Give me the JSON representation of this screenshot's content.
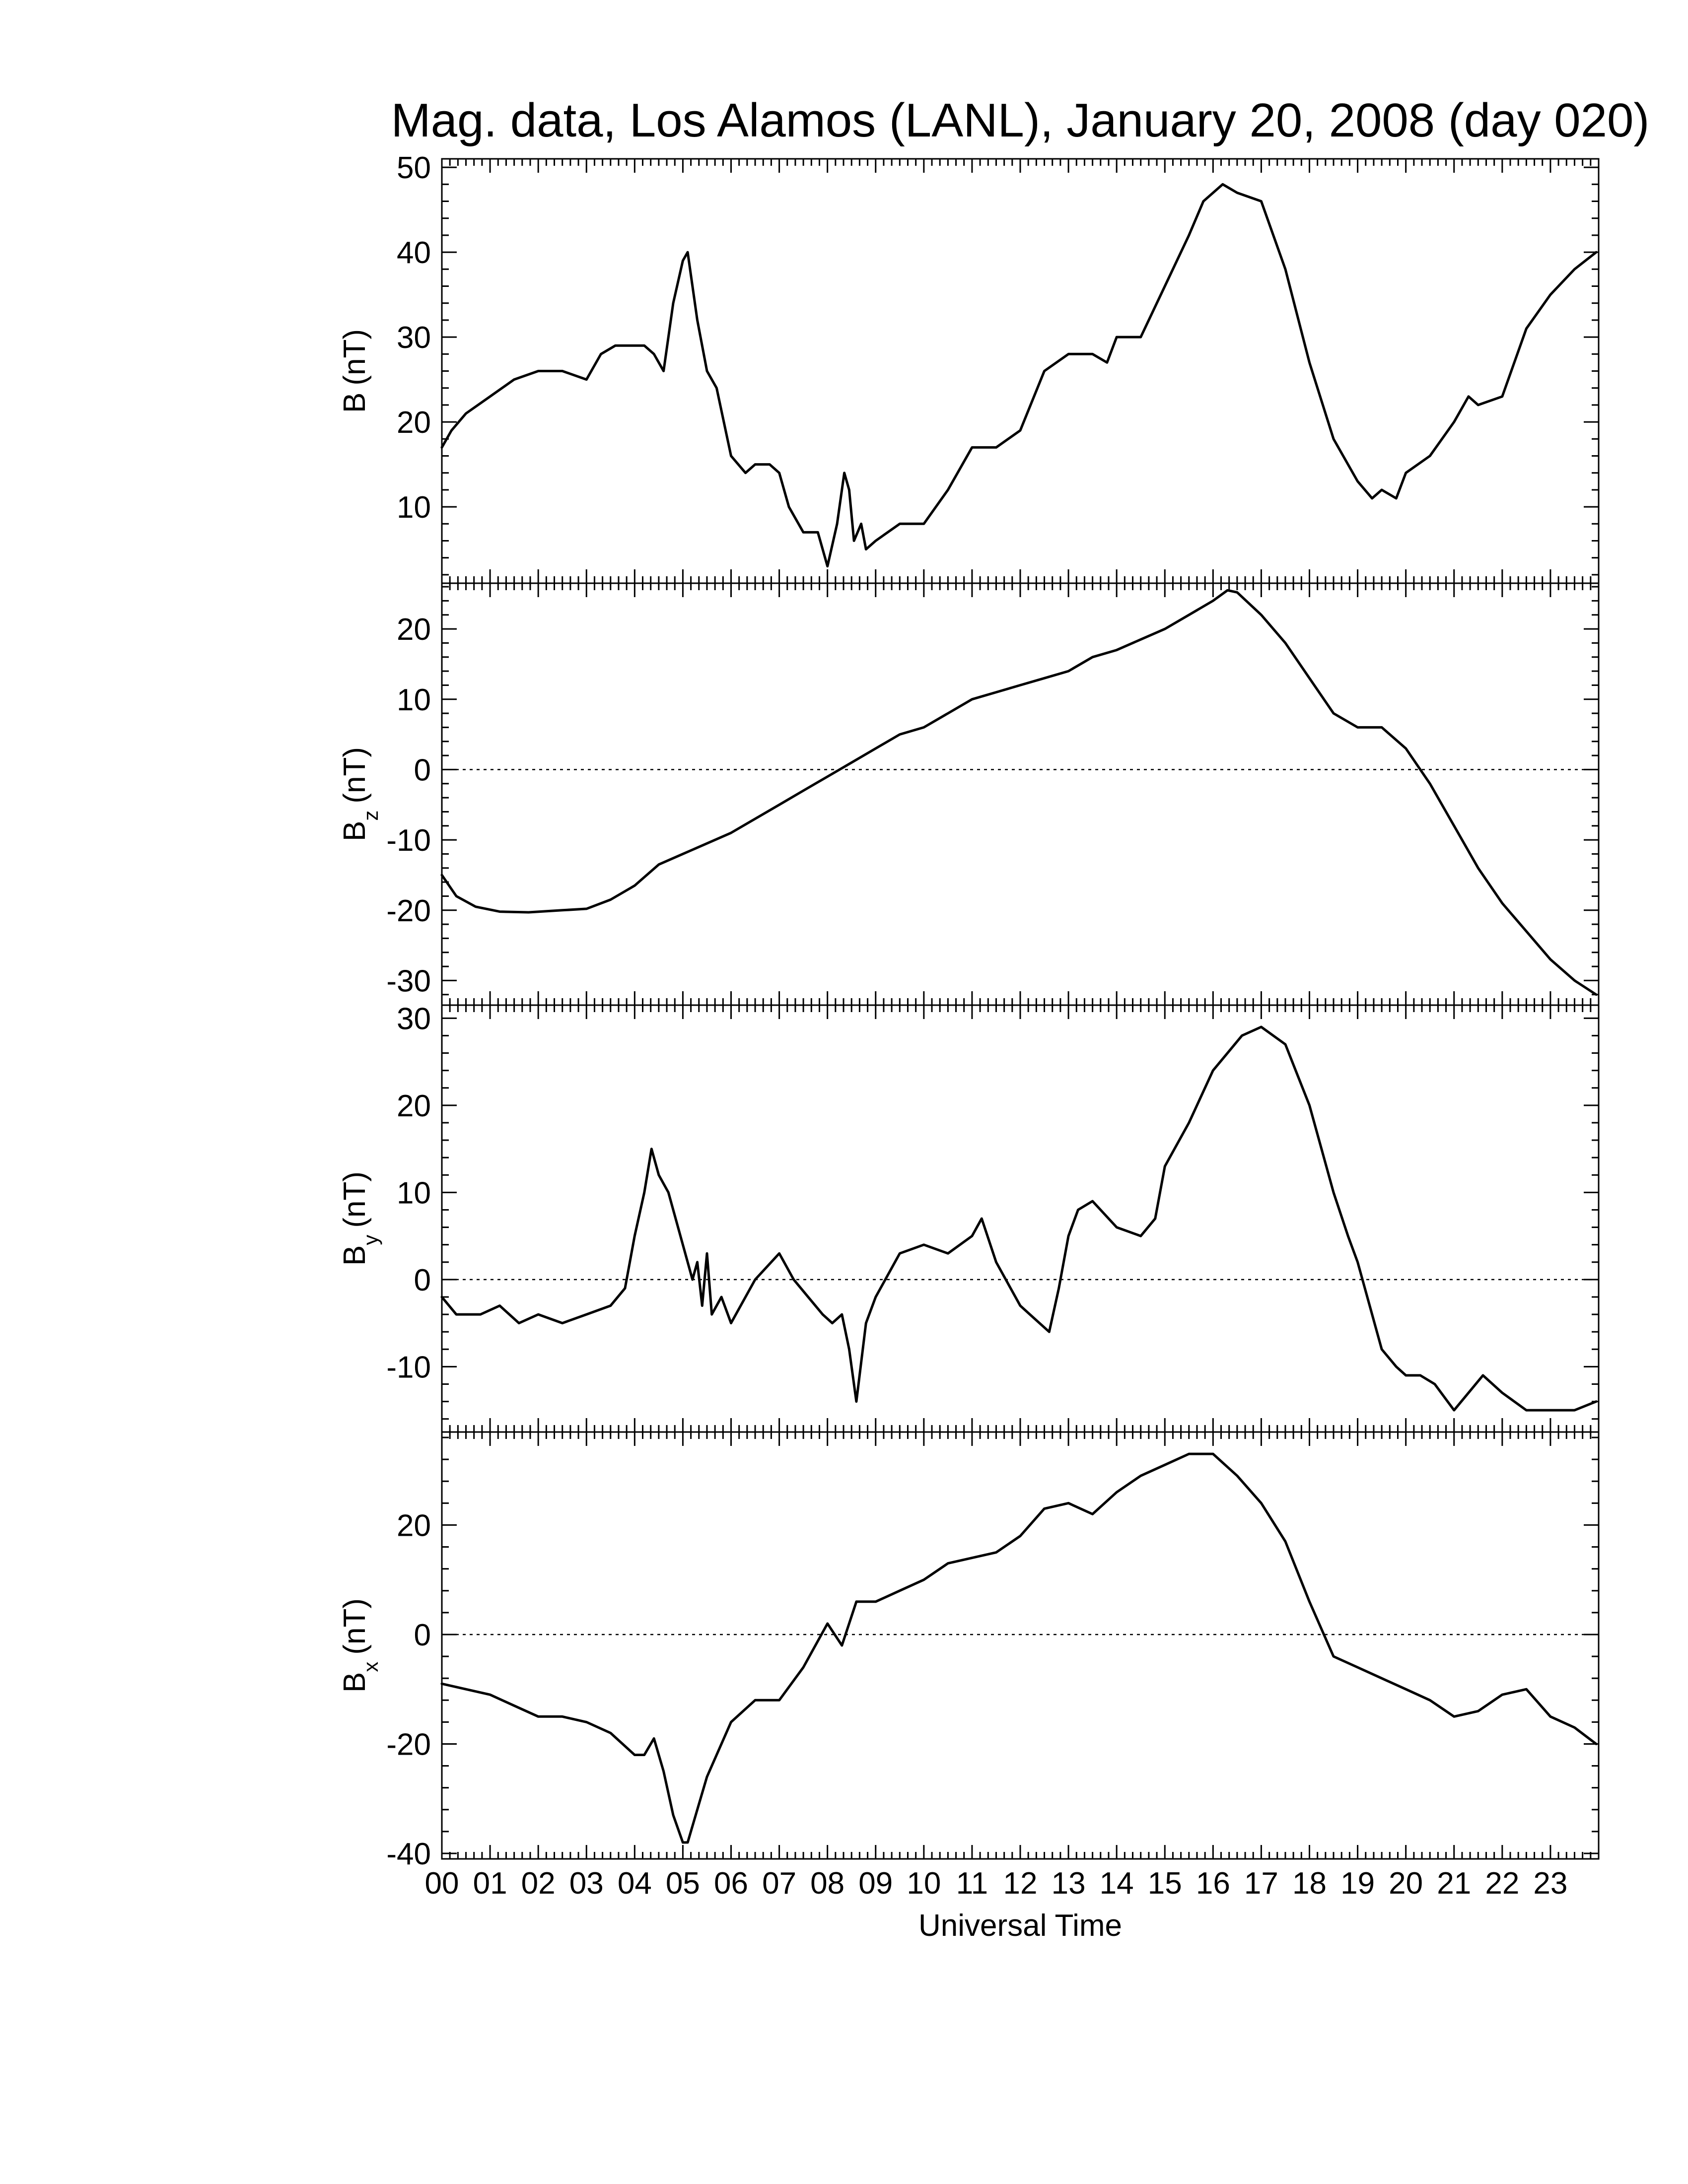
{
  "chart_data": {
    "type": "line",
    "title": "Mag. data, Los Alamos (LANL), January 20, 2008 (day 020)",
    "xlabel": "Universal Time",
    "x_ticks": [
      "00",
      "01",
      "02",
      "03",
      "04",
      "05",
      "06",
      "07",
      "08",
      "09",
      "10",
      "11",
      "12",
      "13",
      "14",
      "15",
      "16",
      "17",
      "18",
      "19",
      "20",
      "21",
      "22",
      "23"
    ],
    "xlim": [
      0,
      24
    ],
    "panels": [
      {
        "name": "B",
        "ylabel": "B",
        "ylabel_sub": "",
        "ylabel_unit": "(nT)",
        "ylim": [
          1,
          51
        ],
        "yticks": [
          10,
          20,
          30,
          40,
          50
        ],
        "zero_line": false,
        "x": [
          0,
          0.2,
          0.5,
          1,
          1.5,
          2,
          2.5,
          3,
          3.3,
          3.6,
          4,
          4.2,
          4.4,
          4.6,
          4.8,
          5.0,
          5.1,
          5.3,
          5.5,
          5.7,
          6,
          6.3,
          6.5,
          6.8,
          7,
          7.2,
          7.5,
          7.8,
          8.0,
          8.2,
          8.35,
          8.45,
          8.55,
          8.7,
          8.8,
          9,
          9.5,
          10,
          10.5,
          11,
          11.5,
          12,
          12.5,
          13,
          13.5,
          13.8,
          14,
          14.5,
          15,
          15.5,
          15.8,
          16.2,
          16.5,
          17,
          17.5,
          18,
          18.5,
          19,
          19.3,
          19.5,
          19.8,
          20,
          20.5,
          21,
          21.3,
          21.5,
          22,
          22.5,
          23,
          23.5,
          23.95
        ],
        "y": [
          17,
          19,
          21,
          23,
          25,
          26,
          26,
          25,
          28,
          29,
          29,
          29,
          28,
          26,
          34,
          39,
          40,
          32,
          26,
          24,
          16,
          14,
          15,
          15,
          14,
          10,
          7,
          7,
          3,
          8,
          14,
          12,
          6,
          8,
          5,
          6,
          8,
          8,
          12,
          17,
          17,
          19,
          26,
          28,
          28,
          27,
          30,
          30,
          36,
          42,
          46,
          48,
          47,
          46,
          38,
          27,
          18,
          13,
          11,
          12,
          11,
          14,
          16,
          20,
          23,
          22,
          23,
          31,
          35,
          38,
          40
        ]
      },
      {
        "name": "Bz",
        "ylabel": "B",
        "ylabel_sub": "z",
        "ylabel_unit": "(nT)",
        "ylim": [
          -33.5,
          26.5
        ],
        "yticks": [
          -30,
          -20,
          -10,
          0,
          10,
          20
        ],
        "zero_line": true,
        "x": [
          0,
          0.3,
          0.7,
          1.2,
          1.8,
          2.5,
          3,
          3.5,
          4,
          4.5,
          5,
          5.5,
          6,
          6.5,
          7,
          7.5,
          8,
          8.5,
          9,
          9.5,
          10,
          10.5,
          11,
          11.5,
          12,
          12.5,
          13,
          13.5,
          14,
          14.5,
          15,
          15.5,
          16,
          16.3,
          16.5,
          17,
          17.5,
          18,
          18.5,
          19,
          19.5,
          20,
          20.5,
          21,
          21.5,
          22,
          22.5,
          23,
          23.5,
          23.95
        ],
        "y": [
          -15,
          -18,
          -19.5,
          -20.2,
          -20.3,
          -20,
          -19.8,
          -18.5,
          -16.5,
          -13.5,
          -12,
          -10.5,
          -9,
          -7,
          -5,
          -3,
          -1,
          1,
          3,
          5,
          6,
          8,
          10,
          11,
          12,
          13,
          14,
          16,
          17,
          18.5,
          20,
          22,
          24,
          25.5,
          25.2,
          22,
          18,
          13,
          8,
          6,
          6,
          3,
          -2,
          -8,
          -14,
          -19,
          -23,
          -27,
          -30,
          -32
        ]
      },
      {
        "name": "By",
        "ylabel": "B",
        "ylabel_sub": "y",
        "ylabel_unit": "(nT)",
        "ylim": [
          -17.5,
          31.5
        ],
        "yticks": [
          -10,
          0,
          10,
          20,
          30
        ],
        "zero_line": true,
        "x": [
          0,
          0.3,
          0.8,
          1.2,
          1.6,
          2,
          2.5,
          3,
          3.5,
          3.8,
          4,
          4.2,
          4.35,
          4.5,
          4.7,
          5,
          5.2,
          5.3,
          5.4,
          5.5,
          5.6,
          5.8,
          6,
          6.5,
          7,
          7.3,
          7.6,
          7.9,
          8.1,
          8.3,
          8.45,
          8.6,
          8.8,
          9,
          9.5,
          10,
          10.5,
          11,
          11.2,
          11.5,
          11.8,
          12,
          12.2,
          12.4,
          12.6,
          12.8,
          13,
          13.2,
          13.5,
          14,
          14.5,
          14.8,
          15,
          15.5,
          16,
          16.3,
          16.6,
          17,
          17.5,
          18,
          18.5,
          18.8,
          19,
          19.3,
          19.5,
          19.8,
          20,
          20.3,
          20.6,
          21,
          21.3,
          21.6,
          22,
          22.5,
          23,
          23.5,
          23.95
        ],
        "y": [
          -2,
          -4,
          -4,
          -3,
          -5,
          -4,
          -5,
          -4,
          -3,
          -1,
          5,
          10,
          15,
          12,
          10,
          4,
          0,
          2,
          -3,
          3,
          -4,
          -2,
          -5,
          0,
          3,
          0,
          -2,
          -4,
          -5,
          -4,
          -8,
          -14,
          -5,
          -2,
          3,
          4,
          3,
          5,
          7,
          2,
          -1,
          -3,
          -4,
          -5,
          -6,
          -1,
          5,
          8,
          9,
          6,
          5,
          7,
          13,
          18,
          24,
          26,
          28,
          29,
          27,
          20,
          10,
          5,
          2,
          -4,
          -8,
          -10,
          -11,
          -11,
          -12,
          -15,
          -13,
          -11,
          -13,
          -15,
          -15,
          -15,
          -14
        ]
      },
      {
        "name": "Bx",
        "ylabel": "B",
        "ylabel_sub": "x",
        "ylabel_unit": "(nT)",
        "ylim": [
          -41,
          37
        ],
        "yticks": [
          -40,
          -20,
          0,
          20
        ],
        "zero_line": true,
        "x": [
          0,
          0.5,
          1,
          1.5,
          2,
          2.5,
          3,
          3.5,
          4,
          4.2,
          4.4,
          4.6,
          4.8,
          5,
          5.1,
          5.3,
          5.5,
          6,
          6.5,
          7,
          7.5,
          8,
          8.3,
          8.6,
          9,
          9.5,
          10,
          10.5,
          11,
          11.5,
          12,
          12.5,
          13,
          13.5,
          14,
          14.5,
          15,
          15.5,
          16,
          16.5,
          17,
          17.5,
          18,
          18.5,
          19,
          19.5,
          20,
          20.5,
          21,
          21.5,
          22,
          22.5,
          23,
          23.5,
          23.95
        ],
        "y": [
          -9,
          -10,
          -11,
          -13,
          -15,
          -15,
          -16,
          -18,
          -22,
          -22,
          -19,
          -25,
          -33,
          -38,
          -38,
          -32,
          -26,
          -16,
          -12,
          -12,
          -6,
          2,
          -2,
          6,
          6,
          8,
          10,
          13,
          14,
          15,
          18,
          23,
          24,
          22,
          26,
          29,
          31,
          33,
          33,
          29,
          24,
          17,
          6,
          -4,
          -6,
          -8,
          -10,
          -12,
          -15,
          -14,
          -11,
          -10,
          -15,
          -17,
          -20
        ]
      }
    ]
  }
}
